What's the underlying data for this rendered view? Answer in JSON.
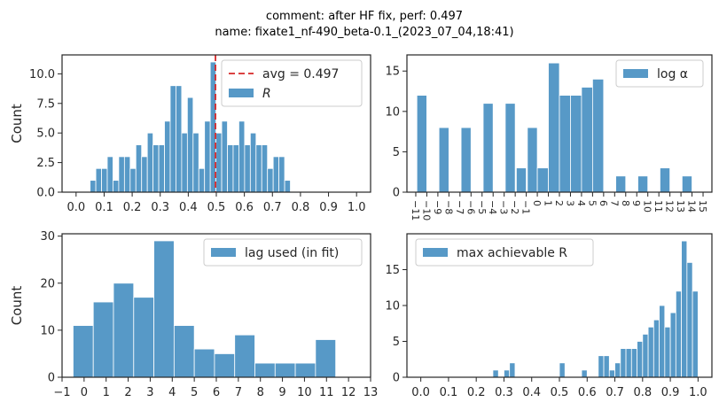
{
  "figure": {
    "title_line1": "comment: after HF fix,  perf: 0.497",
    "title_line2": "name: fixate1_nf-490_beta-0.1_(2023_07_04,18:41)",
    "bar_color": "#5799c7",
    "avg_line_color": "#d62728"
  },
  "chart_data": [
    {
      "type": "bar",
      "name": "R histogram",
      "ylabel": "Count",
      "xlim": [
        -0.05,
        1.05
      ],
      "ylim": [
        0,
        11.6
      ],
      "xticks": [
        0.0,
        0.1,
        0.2,
        0.3,
        0.4,
        0.5,
        0.6,
        0.7,
        0.8,
        0.9,
        1.0
      ],
      "xtick_labels": [
        "0.0",
        "0.1",
        "0.2",
        "0.3",
        "0.4",
        "0.5",
        "0.6",
        "0.7",
        "0.8",
        "0.9",
        "1.0"
      ],
      "yticks": [
        0,
        2.5,
        5,
        7.5,
        10
      ],
      "ytick_labels": [
        "0.0",
        "2.5",
        "5.0",
        "7.5",
        "10.0"
      ],
      "bin_start": 0.05,
      "bin_width": 0.0204,
      "values": [
        1,
        2,
        2,
        3,
        1,
        3,
        3,
        2,
        4,
        3,
        5,
        4,
        4,
        6,
        9,
        9,
        5,
        8,
        5,
        2,
        6,
        11,
        5,
        6,
        4,
        4,
        6,
        4,
        5,
        4,
        4,
        2,
        3,
        3,
        1
      ],
      "avg_line": {
        "x": 0.497,
        "label": "avg = 0.497"
      },
      "legend": [
        "avg = 0.497",
        "R"
      ],
      "legend_position": "upper right"
    },
    {
      "type": "bar",
      "name": "log alpha histogram",
      "ylabel": "",
      "xlim": [
        -11.8,
        15.8
      ],
      "ylim": [
        0,
        17
      ],
      "xticks": [
        -11,
        -10,
        -9,
        -8,
        -7,
        -6,
        -5,
        -4,
        -3,
        -2,
        -1,
        0,
        1,
        2,
        3,
        4,
        5,
        6,
        7,
        8,
        9,
        10,
        11,
        12,
        13,
        14,
        15
      ],
      "xtick_labels": [
        "−11",
        "−10",
        "−9",
        "−8",
        "−7",
        "−6",
        "−5",
        "−4",
        "−3",
        "−2",
        "−1",
        "0",
        "1",
        "2",
        "3",
        "4",
        "5",
        "6",
        "7",
        "8",
        "9",
        "10",
        "11",
        "12",
        "13",
        "14",
        "15"
      ],
      "yticks": [
        0,
        5,
        10,
        15
      ],
      "ytick_labels": [
        "0",
        "5",
        "10",
        "15"
      ],
      "bars": [
        {
          "x0": -10.9,
          "x1": -10.0,
          "v": 12
        },
        {
          "x0": -8.9,
          "x1": -8.0,
          "v": 8
        },
        {
          "x0": -6.9,
          "x1": -6.0,
          "v": 8
        },
        {
          "x0": -4.9,
          "x1": -4.0,
          "v": 11
        },
        {
          "x0": -2.9,
          "x1": -2.0,
          "v": 11
        },
        {
          "x0": -1.9,
          "x1": -1.0,
          "v": 3
        },
        {
          "x0": -0.9,
          "x1": 0.0,
          "v": 8
        },
        {
          "x0": 0.0,
          "x1": 1.0,
          "v": 3
        },
        {
          "x0": 1.0,
          "x1": 2.0,
          "v": 16
        },
        {
          "x0": 2.0,
          "x1": 3.0,
          "v": 12
        },
        {
          "x0": 3.0,
          "x1": 4.0,
          "v": 12
        },
        {
          "x0": 4.0,
          "x1": 5.0,
          "v": 13
        },
        {
          "x0": 5.0,
          "x1": 6.0,
          "v": 14
        },
        {
          "x0": 7.1,
          "x1": 8.0,
          "v": 2
        },
        {
          "x0": 9.1,
          "x1": 10.0,
          "v": 2
        },
        {
          "x0": 11.1,
          "x1": 12.0,
          "v": 3
        },
        {
          "x0": 13.1,
          "x1": 14.0,
          "v": 2
        }
      ],
      "legend": [
        "log α"
      ],
      "legend_position": "upper right"
    },
    {
      "type": "bar",
      "name": "lag histogram",
      "ylabel": "Count",
      "xlim": [
        -1,
        13
      ],
      "ylim": [
        0,
        30.5
      ],
      "xticks": [
        -1,
        0,
        1,
        2,
        3,
        4,
        5,
        6,
        7,
        8,
        9,
        10,
        11,
        12,
        13
      ],
      "xtick_labels": [
        "−1",
        "0",
        "1",
        "2",
        "3",
        "4",
        "5",
        "6",
        "7",
        "8",
        "9",
        "10",
        "11",
        "12",
        "13"
      ],
      "yticks": [
        0,
        10,
        20,
        30
      ],
      "ytick_labels": [
        "0",
        "10",
        "20",
        "30"
      ],
      "bin_start": -0.5,
      "bin_width": 0.9167,
      "values": [
        11,
        16,
        20,
        17,
        29,
        11,
        6,
        5,
        9,
        3,
        3,
        3,
        8
      ],
      "legend": [
        "lag used (in fit)"
      ],
      "legend_position": "upper right"
    },
    {
      "type": "bar",
      "name": "max achievable R histogram",
      "ylabel": "",
      "xlim": [
        -0.05,
        1.05
      ],
      "ylim": [
        0,
        20
      ],
      "xticks": [
        0.0,
        0.1,
        0.2,
        0.3,
        0.4,
        0.5,
        0.6,
        0.7,
        0.8,
        0.9,
        1.0
      ],
      "xtick_labels": [
        "0.0",
        "0.1",
        "0.2",
        "0.3",
        "0.4",
        "0.5",
        "0.6",
        "0.7",
        "0.8",
        "0.9",
        "1.0"
      ],
      "yticks": [
        0,
        5,
        10,
        15
      ],
      "ytick_labels": [
        "0",
        "5",
        "10",
        "15"
      ],
      "bars": [
        {
          "x0": 0.26,
          "x1": 0.28,
          "v": 1
        },
        {
          "x0": 0.3,
          "x1": 0.32,
          "v": 1
        },
        {
          "x0": 0.32,
          "x1": 0.34,
          "v": 2
        },
        {
          "x0": 0.5,
          "x1": 0.52,
          "v": 2
        },
        {
          "x0": 0.58,
          "x1": 0.6,
          "v": 1
        },
        {
          "x0": 0.64,
          "x1": 0.66,
          "v": 3
        },
        {
          "x0": 0.66,
          "x1": 0.68,
          "v": 3
        },
        {
          "x0": 0.68,
          "x1": 0.7,
          "v": 1
        },
        {
          "x0": 0.7,
          "x1": 0.72,
          "v": 2
        },
        {
          "x0": 0.72,
          "x1": 0.74,
          "v": 4
        },
        {
          "x0": 0.74,
          "x1": 0.76,
          "v": 4
        },
        {
          "x0": 0.76,
          "x1": 0.78,
          "v": 4
        },
        {
          "x0": 0.78,
          "x1": 0.8,
          "v": 5
        },
        {
          "x0": 0.8,
          "x1": 0.82,
          "v": 6
        },
        {
          "x0": 0.82,
          "x1": 0.84,
          "v": 7
        },
        {
          "x0": 0.84,
          "x1": 0.86,
          "v": 8
        },
        {
          "x0": 0.86,
          "x1": 0.88,
          "v": 10
        },
        {
          "x0": 0.88,
          "x1": 0.9,
          "v": 7
        },
        {
          "x0": 0.9,
          "x1": 0.92,
          "v": 9
        },
        {
          "x0": 0.92,
          "x1": 0.94,
          "v": 12
        },
        {
          "x0": 0.94,
          "x1": 0.96,
          "v": 19
        },
        {
          "x0": 0.96,
          "x1": 0.98,
          "v": 16
        },
        {
          "x0": 0.98,
          "x1": 1.0,
          "v": 12
        }
      ],
      "legend": [
        "max achievable R"
      ],
      "legend_position": "upper left"
    }
  ]
}
